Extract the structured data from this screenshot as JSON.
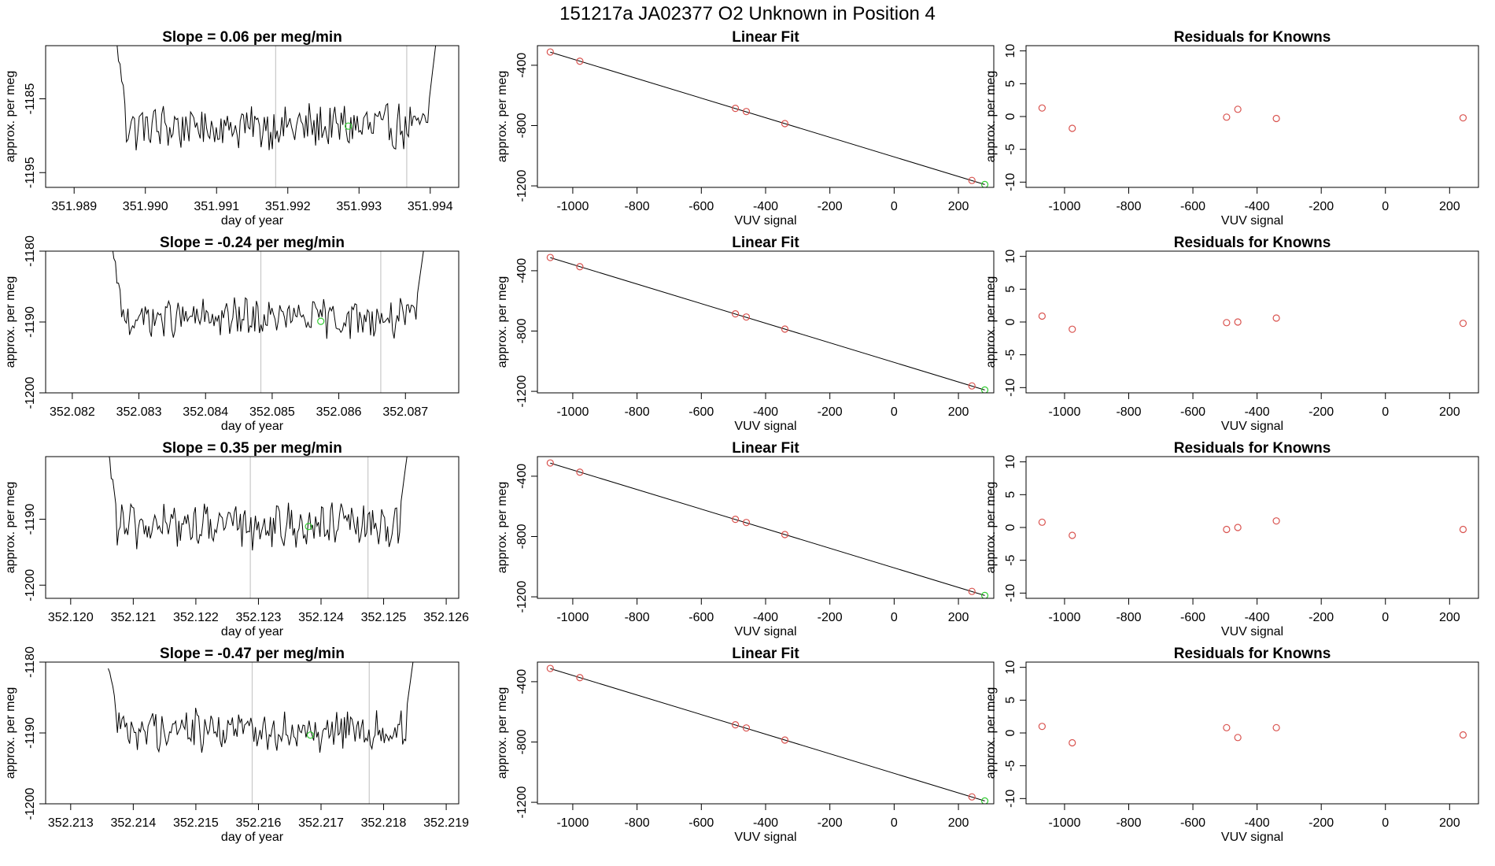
{
  "page": {
    "title": "151217a      JA02377    O2 Unknown in Position  4"
  },
  "colors": {
    "trace": "#000000",
    "known_point": "#d9534f",
    "unknown_point": "#33cc33",
    "window_line": "#c8c8c8",
    "fit_line": "#000000"
  },
  "chart_data": [
    {
      "panel": "time-series",
      "row": 1,
      "type": "line",
      "title": "Slope =  0.06  per meg/min",
      "xlabel": "day of year",
      "ylabel": "approx. per meg",
      "xlim": [
        351.9886,
        351.9944
      ],
      "ylim": [
        -1197.0,
        -1177.8
      ],
      "xticks": [
        351.989,
        351.99,
        351.991,
        351.992,
        351.993,
        351.994
      ],
      "xtick_labels": [
        "351.989",
        "351.990",
        "351.991",
        "351.992",
        "351.993",
        "351.994"
      ],
      "yticks": [
        -1185,
        -1195
      ],
      "ytick_labels": [
        "-1185",
        "-1195"
      ],
      "trace_x_range": [
        351.9896,
        351.9941
      ],
      "trace_level": -1188.8,
      "trace_noise": 2.6,
      "trace_edge_high": -1177.8,
      "vlines": [
        351.99183,
        351.99367
      ],
      "unknown_point": {
        "x": 351.99285,
        "y": -1188.7
      }
    },
    {
      "panel": "linear-fit",
      "row": 1,
      "type": "scatter",
      "title": "Linear Fit",
      "xlabel": "VUV signal",
      "ylabel": "approx. per meg",
      "xlim": [
        -1110,
        310
      ],
      "ylim": [
        -1210,
        -270
      ],
      "xticks": [
        -1000,
        -800,
        -600,
        -400,
        -200,
        0,
        200
      ],
      "xtick_labels": [
        "-1000",
        "-800",
        "-600",
        "-400",
        "-200",
        "0",
        "200"
      ],
      "yticks": [
        -400,
        -800,
        -1200
      ],
      "ytick_labels": [
        "-400",
        "-800",
        "-1200"
      ],
      "fit_line": {
        "x": [
          -1070,
          282
        ],
        "y": [
          -313,
          -1191
        ]
      },
      "knowns": [
        {
          "x": -1070,
          "y": -312
        },
        {
          "x": -978,
          "y": -373
        },
        {
          "x": -494,
          "y": -686
        },
        {
          "x": -460,
          "y": -707
        },
        {
          "x": -340,
          "y": -787
        },
        {
          "x": 242,
          "y": -1164
        }
      ],
      "unknown": {
        "x": 282,
        "y": -1191
      }
    },
    {
      "panel": "residuals",
      "row": 1,
      "type": "scatter",
      "title": "Residuals for Knowns",
      "xlabel": "VUV signal",
      "ylabel": "approx. per meg",
      "xlim": [
        -1120,
        290
      ],
      "ylim": [
        -10.8,
        10.8
      ],
      "xticks": [
        -1000,
        -800,
        -600,
        -400,
        -200,
        0,
        200
      ],
      "xtick_labels": [
        "-1000",
        "-800",
        "-600",
        "-400",
        "-200",
        "0",
        "200"
      ],
      "yticks": [
        10,
        5,
        0,
        -5,
        -10
      ],
      "ytick_labels": [
        "10",
        "5",
        "0",
        "-5",
        "-10"
      ],
      "points": [
        {
          "x": -1070,
          "y": 1.3
        },
        {
          "x": -976,
          "y": -1.8
        },
        {
          "x": -495,
          "y": -0.1
        },
        {
          "x": -460,
          "y": 1.1
        },
        {
          "x": -340,
          "y": -0.3
        },
        {
          "x": 242,
          "y": -0.2
        }
      ]
    },
    {
      "panel": "time-series",
      "row": 2,
      "type": "line",
      "title": "Slope =  -0.24  per meg/min",
      "xlabel": "day of year",
      "ylabel": "approx. per meg",
      "xlim": [
        352.0816,
        352.0878
      ],
      "ylim": [
        -1200.0,
        -1180.0
      ],
      "xticks": [
        352.082,
        352.083,
        352.084,
        352.085,
        352.086,
        352.087
      ],
      "xtick_labels": [
        "352.082",
        "352.083",
        "352.084",
        "352.085",
        "352.086",
        "352.087"
      ],
      "yticks": [
        -1180,
        -1190,
        -1200
      ],
      "ytick_labels": [
        "-1180",
        "-1190",
        "-1200"
      ],
      "trace_x_range": [
        352.0826,
        352.0873
      ],
      "trace_level": -1189.5,
      "trace_noise": 2.3,
      "trace_edge_high": -1180.0,
      "vlines": [
        352.08483,
        352.08663
      ],
      "unknown_point": {
        "x": 352.08573,
        "y": -1189.9
      }
    },
    {
      "panel": "linear-fit",
      "row": 2,
      "type": "scatter",
      "title": "Linear Fit",
      "xlabel": "VUV signal",
      "ylabel": "approx. per meg",
      "xlim": [
        -1110,
        310
      ],
      "ylim": [
        -1210,
        -270
      ],
      "xticks": [
        -1000,
        -800,
        -600,
        -400,
        -200,
        0,
        200
      ],
      "xtick_labels": [
        "-1000",
        "-800",
        "-600",
        "-400",
        "-200",
        "0",
        "200"
      ],
      "yticks": [
        -400,
        -800,
        -1200
      ],
      "ytick_labels": [
        "-400",
        "-800",
        "-1200"
      ],
      "fit_line": {
        "x": [
          -1070,
          282
        ],
        "y": [
          -313,
          -1191
        ]
      },
      "knowns": [
        {
          "x": -1070,
          "y": -312
        },
        {
          "x": -978,
          "y": -373
        },
        {
          "x": -494,
          "y": -686
        },
        {
          "x": -460,
          "y": -707
        },
        {
          "x": -340,
          "y": -787
        },
        {
          "x": 242,
          "y": -1164
        }
      ],
      "unknown": {
        "x": 282,
        "y": -1191
      }
    },
    {
      "panel": "residuals",
      "row": 2,
      "type": "scatter",
      "title": "Residuals for Knowns",
      "xlabel": "VUV signal",
      "ylabel": "approx. per meg",
      "xlim": [
        -1120,
        290
      ],
      "ylim": [
        -10.8,
        10.8
      ],
      "xticks": [
        -1000,
        -800,
        -600,
        -400,
        -200,
        0,
        200
      ],
      "xtick_labels": [
        "-1000",
        "-800",
        "-600",
        "-400",
        "-200",
        "0",
        "200"
      ],
      "yticks": [
        10,
        5,
        0,
        -5,
        -10
      ],
      "ytick_labels": [
        "10",
        "5",
        "0",
        "-5",
        "-10"
      ],
      "points": [
        {
          "x": -1070,
          "y": 0.9
        },
        {
          "x": -976,
          "y": -1.1
        },
        {
          "x": -495,
          "y": -0.1
        },
        {
          "x": -460,
          "y": 0.0
        },
        {
          "x": -340,
          "y": 0.6
        },
        {
          "x": 242,
          "y": -0.2
        }
      ]
    },
    {
      "panel": "time-series",
      "row": 3,
      "type": "line",
      "title": "Slope =  0.35  per meg/min",
      "xlabel": "day of year",
      "ylabel": "approx. per meg",
      "xlim": [
        352.1196,
        352.1262
      ],
      "ylim": [
        -1202.0,
        -1180.5
      ],
      "xticks": [
        352.12,
        352.121,
        352.122,
        352.123,
        352.124,
        352.125,
        352.126
      ],
      "xtick_labels": [
        "352.120",
        "352.121",
        "352.122",
        "352.123",
        "352.124",
        "352.125",
        "352.126"
      ],
      "yticks": [
        -1190,
        -1200
      ],
      "ytick_labels": [
        "-1190",
        "-1200"
      ],
      "trace_x_range": [
        352.1206,
        352.1254
      ],
      "trace_level": -1191.0,
      "trace_noise": 2.8,
      "trace_edge_high": -1180.5,
      "vlines": [
        352.12287,
        352.12475
      ],
      "unknown_point": {
        "x": 352.1238,
        "y": -1191.1
      }
    },
    {
      "panel": "linear-fit",
      "row": 3,
      "type": "scatter",
      "title": "Linear Fit",
      "xlabel": "VUV signal",
      "ylabel": "approx. per meg",
      "xlim": [
        -1110,
        310
      ],
      "ylim": [
        -1210,
        -270
      ],
      "xticks": [
        -1000,
        -800,
        -600,
        -400,
        -200,
        0,
        200
      ],
      "xtick_labels": [
        "-1000",
        "-800",
        "-600",
        "-400",
        "-200",
        "0",
        "200"
      ],
      "yticks": [
        -400,
        -800,
        -1200
      ],
      "ytick_labels": [
        "-400",
        "-800",
        "-1200"
      ],
      "fit_line": {
        "x": [
          -1070,
          282
        ],
        "y": [
          -313,
          -1191
        ]
      },
      "knowns": [
        {
          "x": -1070,
          "y": -312
        },
        {
          "x": -978,
          "y": -373
        },
        {
          "x": -494,
          "y": -686
        },
        {
          "x": -460,
          "y": -707
        },
        {
          "x": -340,
          "y": -787
        },
        {
          "x": 242,
          "y": -1164
        }
      ],
      "unknown": {
        "x": 282,
        "y": -1191
      }
    },
    {
      "panel": "residuals",
      "row": 3,
      "type": "scatter",
      "title": "Residuals for Knowns",
      "xlabel": "VUV signal",
      "ylabel": "approx. per meg",
      "xlim": [
        -1120,
        290
      ],
      "ylim": [
        -10.8,
        10.8
      ],
      "xticks": [
        -1000,
        -800,
        -600,
        -400,
        -200,
        0,
        200
      ],
      "xtick_labels": [
        "-1000",
        "-800",
        "-600",
        "-400",
        "-200",
        "0",
        "200"
      ],
      "yticks": [
        10,
        5,
        0,
        -5,
        -10
      ],
      "ytick_labels": [
        "10",
        "5",
        "0",
        "-5",
        "-10"
      ],
      "points": [
        {
          "x": -1070,
          "y": 0.8
        },
        {
          "x": -976,
          "y": -1.2
        },
        {
          "x": -495,
          "y": -0.3
        },
        {
          "x": -460,
          "y": 0.0
        },
        {
          "x": -340,
          "y": 1.0
        },
        {
          "x": 242,
          "y": -0.3
        }
      ]
    },
    {
      "panel": "time-series",
      "row": 4,
      "type": "line",
      "title": "Slope =  -0.47  per meg/min",
      "xlabel": "day of year",
      "ylabel": "approx. per meg",
      "xlim": [
        352.2126,
        352.2192
      ],
      "ylim": [
        -1200.0,
        -1180.0
      ],
      "xticks": [
        352.213,
        352.214,
        352.215,
        352.216,
        352.217,
        352.218,
        352.219
      ],
      "xtick_labels": [
        "352.213",
        "352.214",
        "352.215",
        "352.216",
        "352.217",
        "352.218",
        "352.219"
      ],
      "yticks": [
        -1180,
        -1190,
        -1200
      ],
      "ytick_labels": [
        "-1180",
        "-1190",
        "-1200"
      ],
      "trace_x_range": [
        352.2136,
        352.2185
      ],
      "trace_level": -1189.5,
      "trace_noise": 2.5,
      "trace_edge_high": -1180.0,
      "vlines": [
        352.2159,
        352.21777
      ],
      "unknown_point": {
        "x": 352.21683,
        "y": -1190.3
      }
    },
    {
      "panel": "linear-fit",
      "row": 4,
      "type": "scatter",
      "title": "Linear Fit",
      "xlabel": "VUV signal",
      "ylabel": "approx. per meg",
      "xlim": [
        -1110,
        310
      ],
      "ylim": [
        -1210,
        -270
      ],
      "xticks": [
        -1000,
        -800,
        -600,
        -400,
        -200,
        0,
        200
      ],
      "xtick_labels": [
        "-1000",
        "-800",
        "-600",
        "-400",
        "-200",
        "0",
        "200"
      ],
      "yticks": [
        -400,
        -800,
        -1200
      ],
      "ytick_labels": [
        "-400",
        "-800",
        "-1200"
      ],
      "fit_line": {
        "x": [
          -1070,
          282
        ],
        "y": [
          -313,
          -1191
        ]
      },
      "knowns": [
        {
          "x": -1070,
          "y": -312
        },
        {
          "x": -978,
          "y": -373
        },
        {
          "x": -494,
          "y": -686
        },
        {
          "x": -460,
          "y": -707
        },
        {
          "x": -340,
          "y": -787
        },
        {
          "x": 242,
          "y": -1164
        }
      ],
      "unknown": {
        "x": 282,
        "y": -1191
      }
    },
    {
      "panel": "residuals",
      "row": 4,
      "type": "scatter",
      "title": "Residuals for Knowns",
      "xlabel": "VUV signal",
      "ylabel": "approx. per meg",
      "xlim": [
        -1120,
        290
      ],
      "ylim": [
        -10.8,
        10.8
      ],
      "xticks": [
        -1000,
        -800,
        -600,
        -400,
        -200,
        0,
        200
      ],
      "xtick_labels": [
        "-1000",
        "-800",
        "-600",
        "-400",
        "-200",
        "0",
        "200"
      ],
      "yticks": [
        10,
        5,
        0,
        -5,
        -10
      ],
      "ytick_labels": [
        "10",
        "5",
        "0",
        "-5",
        "-10"
      ],
      "points": [
        {
          "x": -1070,
          "y": 1.0
        },
        {
          "x": -976,
          "y": -1.5
        },
        {
          "x": -495,
          "y": 0.8
        },
        {
          "x": -460,
          "y": -0.7
        },
        {
          "x": -340,
          "y": 0.8
        },
        {
          "x": 242,
          "y": -0.3
        }
      ]
    }
  ]
}
